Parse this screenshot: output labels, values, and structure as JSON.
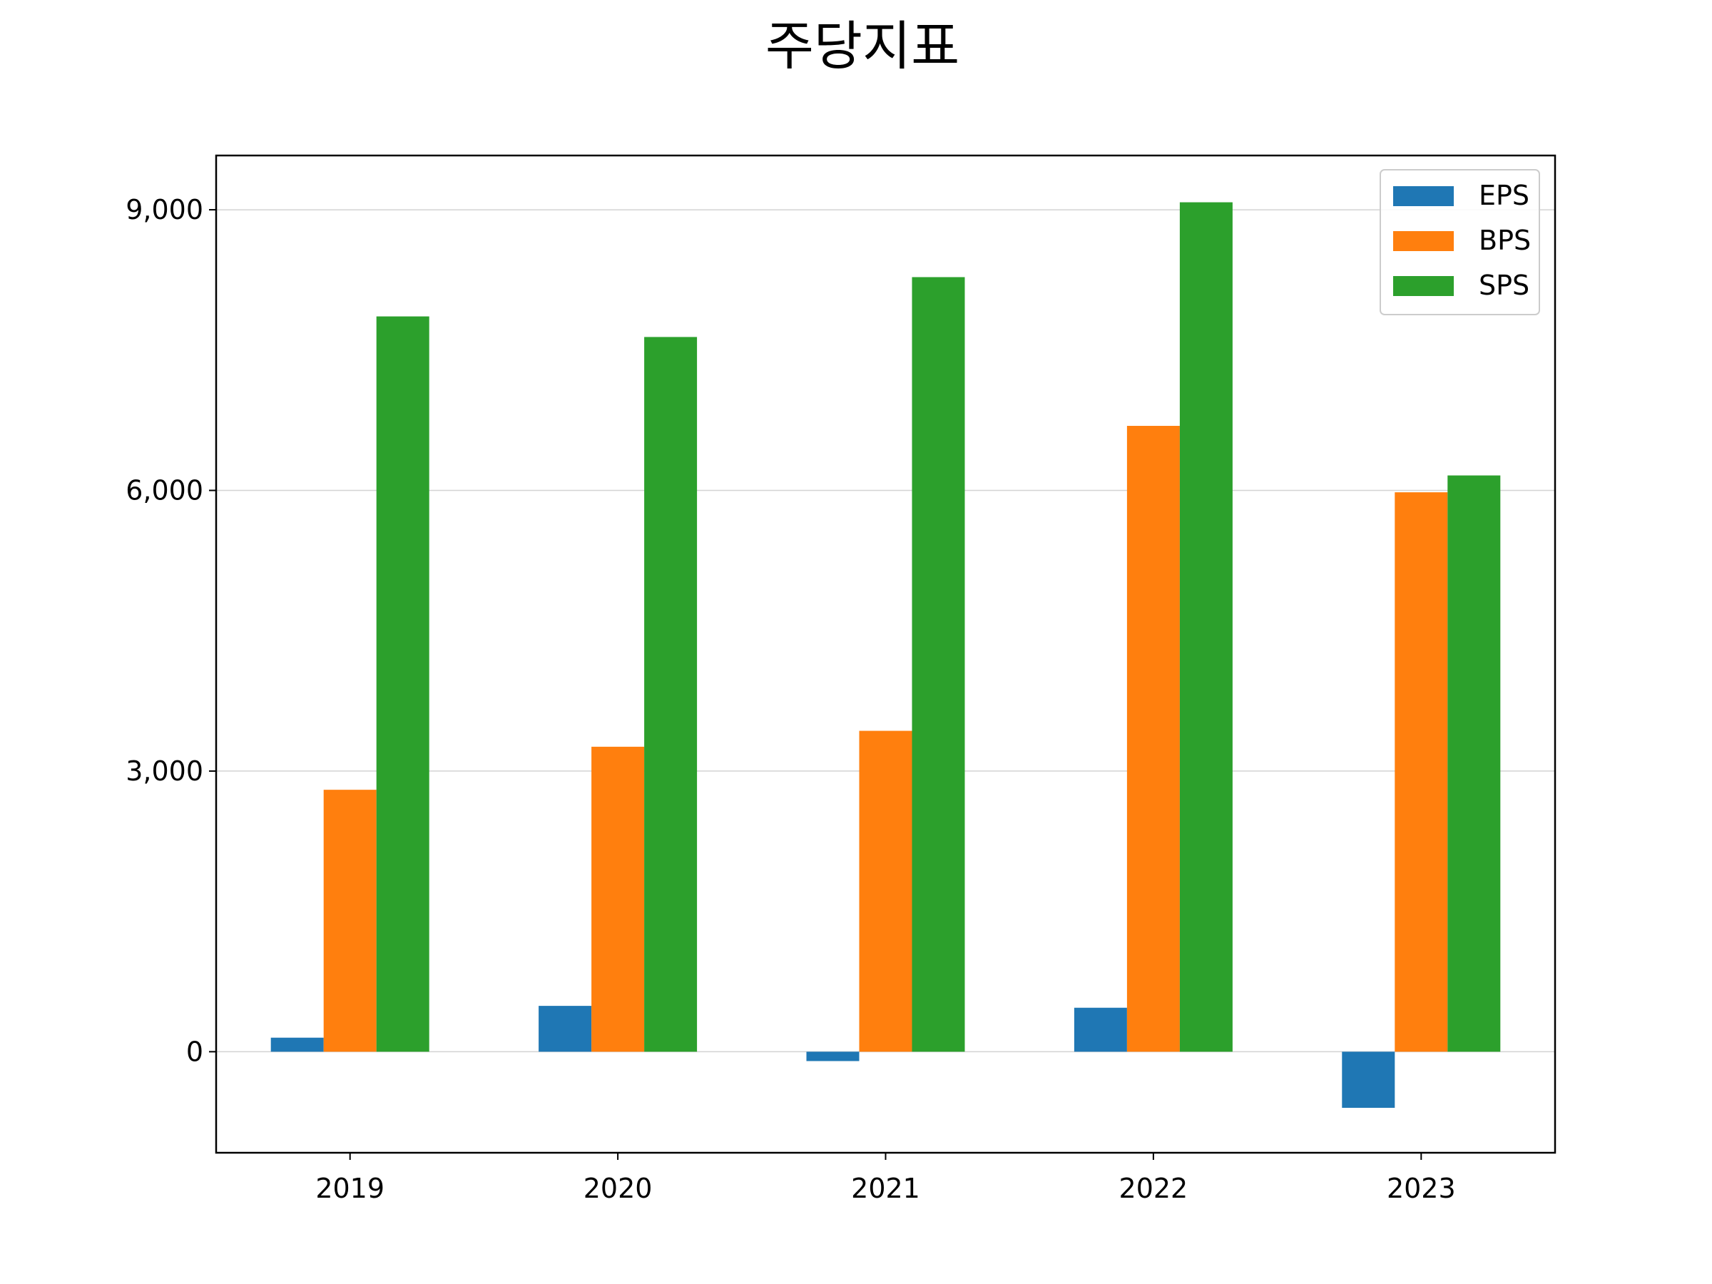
{
  "chart_data": {
    "type": "bar",
    "title": "주당지표",
    "xlabel": "",
    "ylabel": "",
    "categories": [
      "2019",
      "2020",
      "2021",
      "2022",
      "2023"
    ],
    "series": [
      {
        "name": "EPS",
        "color": "#1f77b4",
        "values": [
          150,
          490,
          -100,
          470,
          -600
        ]
      },
      {
        "name": "BPS",
        "color": "#ff7f0e",
        "values": [
          2800,
          3260,
          3430,
          6690,
          5980
        ]
      },
      {
        "name": "SPS",
        "color": "#2ca02c",
        "values": [
          7860,
          7640,
          8280,
          9080,
          6160
        ]
      }
    ],
    "ylim": [
      -1080,
      9580
    ],
    "yticks": [
      0,
      3000,
      6000,
      9000
    ],
    "ytick_labels": [
      "0",
      "3,000",
      "6,000",
      "9,000"
    ],
    "grid": "y",
    "legend_position": "top-right"
  }
}
